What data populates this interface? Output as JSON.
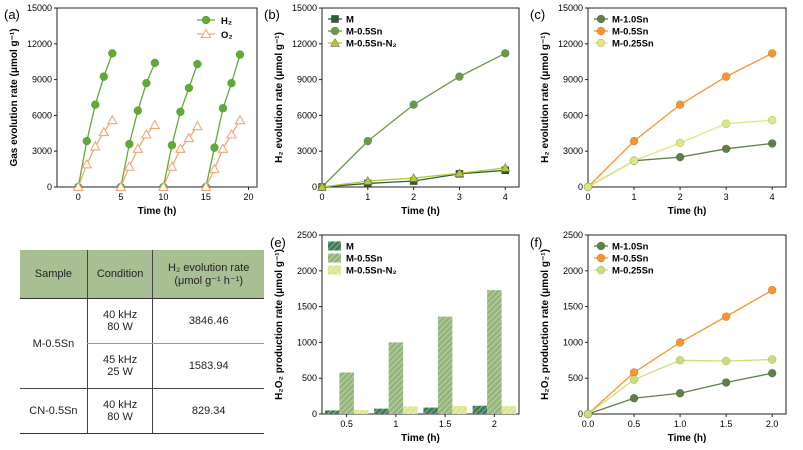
{
  "chart_data": [
    {
      "id": "a",
      "panel_label": "(a)",
      "type": "line",
      "title": "",
      "xlabel": "Time (h)",
      "ylabel": "Gas evolution rate (μmol g⁻¹)",
      "xlim": [
        -2.5,
        21
      ],
      "ylim": [
        0,
        15000
      ],
      "xticks": [
        0,
        5,
        10,
        15,
        20
      ],
      "yticks": [
        0,
        3000,
        6000,
        9000,
        12000,
        15000
      ],
      "legend": [
        "H₂",
        "O₂"
      ],
      "series": [
        {
          "name": "H₂",
          "color": "#5eac33",
          "marker": "circle-filled",
          "cycles": [
            {
              "x": [
                0,
                1,
                2,
                3,
                4
              ],
              "y": [
                0,
                3846,
                6900,
                9250,
                11200
              ]
            },
            {
              "x": [
                5,
                6,
                7,
                8,
                9
              ],
              "y": [
                0,
                3600,
                6400,
                8700,
                10400
              ]
            },
            {
              "x": [
                10,
                11,
                12,
                13,
                14
              ],
              "y": [
                0,
                3500,
                6300,
                8300,
                10300
              ]
            },
            {
              "x": [
                15,
                16,
                17,
                18,
                19
              ],
              "y": [
                0,
                3300,
                6600,
                8700,
                11100
              ]
            }
          ]
        },
        {
          "name": "O₂",
          "color": "#f0a878",
          "marker": "triangle-open",
          "cycles": [
            {
              "x": [
                0,
                1,
                2,
                3,
                4
              ],
              "y": [
                0,
                1900,
                3400,
                4600,
                5600
              ]
            },
            {
              "x": [
                5,
                6,
                7,
                8,
                9
              ],
              "y": [
                0,
                1700,
                3200,
                4400,
                5200
              ]
            },
            {
              "x": [
                10,
                11,
                12,
                13,
                14
              ],
              "y": [
                0,
                1700,
                3200,
                4100,
                5100
              ]
            },
            {
              "x": [
                15,
                16,
                17,
                18,
                19
              ],
              "y": [
                0,
                1500,
                3200,
                4400,
                5600
              ]
            }
          ]
        }
      ]
    },
    {
      "id": "b",
      "panel_label": "(b)",
      "type": "line",
      "xlabel": "Time (h)",
      "ylabel": "H₂ evolution rate (μmol g⁻¹)",
      "xlim": [
        0,
        4.3
      ],
      "ylim": [
        0,
        15000
      ],
      "xticks": [
        0,
        1,
        2,
        3,
        4
      ],
      "yticks": [
        0,
        3000,
        6000,
        9000,
        12000,
        15000
      ],
      "legend": [
        "M",
        "M-0.5Sn",
        "M-0.5Sn-N₂"
      ],
      "x": [
        0,
        1,
        2,
        3,
        4
      ],
      "series": [
        {
          "name": "M",
          "color": "#2f5e3a",
          "marker": "square",
          "values": [
            0,
            300,
            500,
            1100,
            1400
          ]
        },
        {
          "name": "M-0.5Sn",
          "color": "#6b9a45",
          "marker": "circle",
          "values": [
            0,
            3846,
            6900,
            9250,
            11200
          ]
        },
        {
          "name": "M-0.5Sn-N₂",
          "color": "#b6c832",
          "marker": "triangle",
          "values": [
            0,
            500,
            750,
            1150,
            1600
          ]
        }
      ]
    },
    {
      "id": "c",
      "panel_label": "(c)",
      "type": "line",
      "xlabel": "Time (h)",
      "ylabel": "H₂ evolution rate (μmol g⁻¹)",
      "xlim": [
        0,
        4.3
      ],
      "ylim": [
        0,
        15000
      ],
      "xticks": [
        0,
        1,
        2,
        3,
        4
      ],
      "yticks": [
        0,
        3000,
        6000,
        9000,
        12000,
        15000
      ],
      "legend": [
        "M-1.0Sn",
        "M-0.5Sn",
        "M-0.25Sn"
      ],
      "x": [
        0,
        1,
        2,
        3,
        4
      ],
      "series": [
        {
          "name": "M-1.0Sn",
          "color": "#5f7f45",
          "values": [
            0,
            2200,
            2500,
            3200,
            3650
          ]
        },
        {
          "name": "M-0.5Sn",
          "color": "#f7952e",
          "values": [
            0,
            3846,
            6900,
            9250,
            11200
          ]
        },
        {
          "name": "M-0.25Sn",
          "color": "#dde882",
          "values": [
            0,
            2200,
            3700,
            5300,
            5600
          ]
        }
      ]
    },
    {
      "id": "e",
      "panel_label": "(e)",
      "type": "bar",
      "xlabel": "Time (h)",
      "ylabel": "H₂O₂ production rate (μmol g⁻¹)",
      "categories": [
        "0.5",
        "1",
        "1.5",
        "2"
      ],
      "ylim": [
        0,
        2500
      ],
      "yticks": [
        0,
        500,
        1000,
        1500,
        2000,
        2500
      ],
      "legend": [
        "M",
        "M-0.5Sn",
        "M-0.5Sn-N₂"
      ],
      "series": [
        {
          "name": "M",
          "color": "#3e7a55",
          "values": [
            50,
            75,
            90,
            115
          ]
        },
        {
          "name": "M-0.5Sn",
          "color": "#94b57a",
          "values": [
            580,
            1000,
            1360,
            1730
          ]
        },
        {
          "name": "M-0.5Sn-N₂",
          "color": "#dbe68c",
          "values": [
            55,
            105,
            110,
            110
          ]
        }
      ]
    },
    {
      "id": "f",
      "panel_label": "(f)",
      "type": "line",
      "xlabel": "Time (h)",
      "ylabel": "H₂O₂ production rate (μmol g⁻¹)",
      "xlim": [
        0,
        2.15
      ],
      "ylim": [
        0,
        2500
      ],
      "xticks": [
        0,
        0.5,
        1,
        1.5,
        2
      ],
      "xtick_labels": [
        "0.0",
        "0.5",
        "1.0",
        "1.5",
        "2.0"
      ],
      "yticks": [
        0,
        500,
        1000,
        1500,
        2000,
        2500
      ],
      "legend": [
        "M-1.0Sn",
        "M-0.5Sn",
        "M-0.25Sn"
      ],
      "x": [
        0,
        0.5,
        1,
        1.5,
        2
      ],
      "series": [
        {
          "name": "M-1.0Sn",
          "color": "#5f7f45",
          "values": [
            0,
            220,
            290,
            440,
            570
          ]
        },
        {
          "name": "M-0.5Sn",
          "color": "#f7952e",
          "values": [
            0,
            580,
            1000,
            1360,
            1730
          ]
        },
        {
          "name": "M-0.25Sn",
          "color": "#cfdc7a",
          "values": [
            0,
            480,
            750,
            740,
            760
          ]
        }
      ]
    }
  ],
  "table_d": {
    "panel_label": "(d)",
    "headers": [
      "Sample",
      "Condition",
      "H₂ evolution rate",
      "(μmol g⁻¹ h⁻¹)"
    ],
    "rows": [
      {
        "sample": "M-0.5Sn",
        "condition": [
          "40 kHz",
          "80 W"
        ],
        "rate": "3846.46"
      },
      {
        "sample": "",
        "condition": [
          "45 kHz",
          "25 W"
        ],
        "rate": "1583.94"
      },
      {
        "sample": "CN-0.5Sn",
        "condition": [
          "40 kHz",
          "80 W"
        ],
        "rate": "829.34"
      }
    ],
    "header_color": "#a8bf94"
  }
}
